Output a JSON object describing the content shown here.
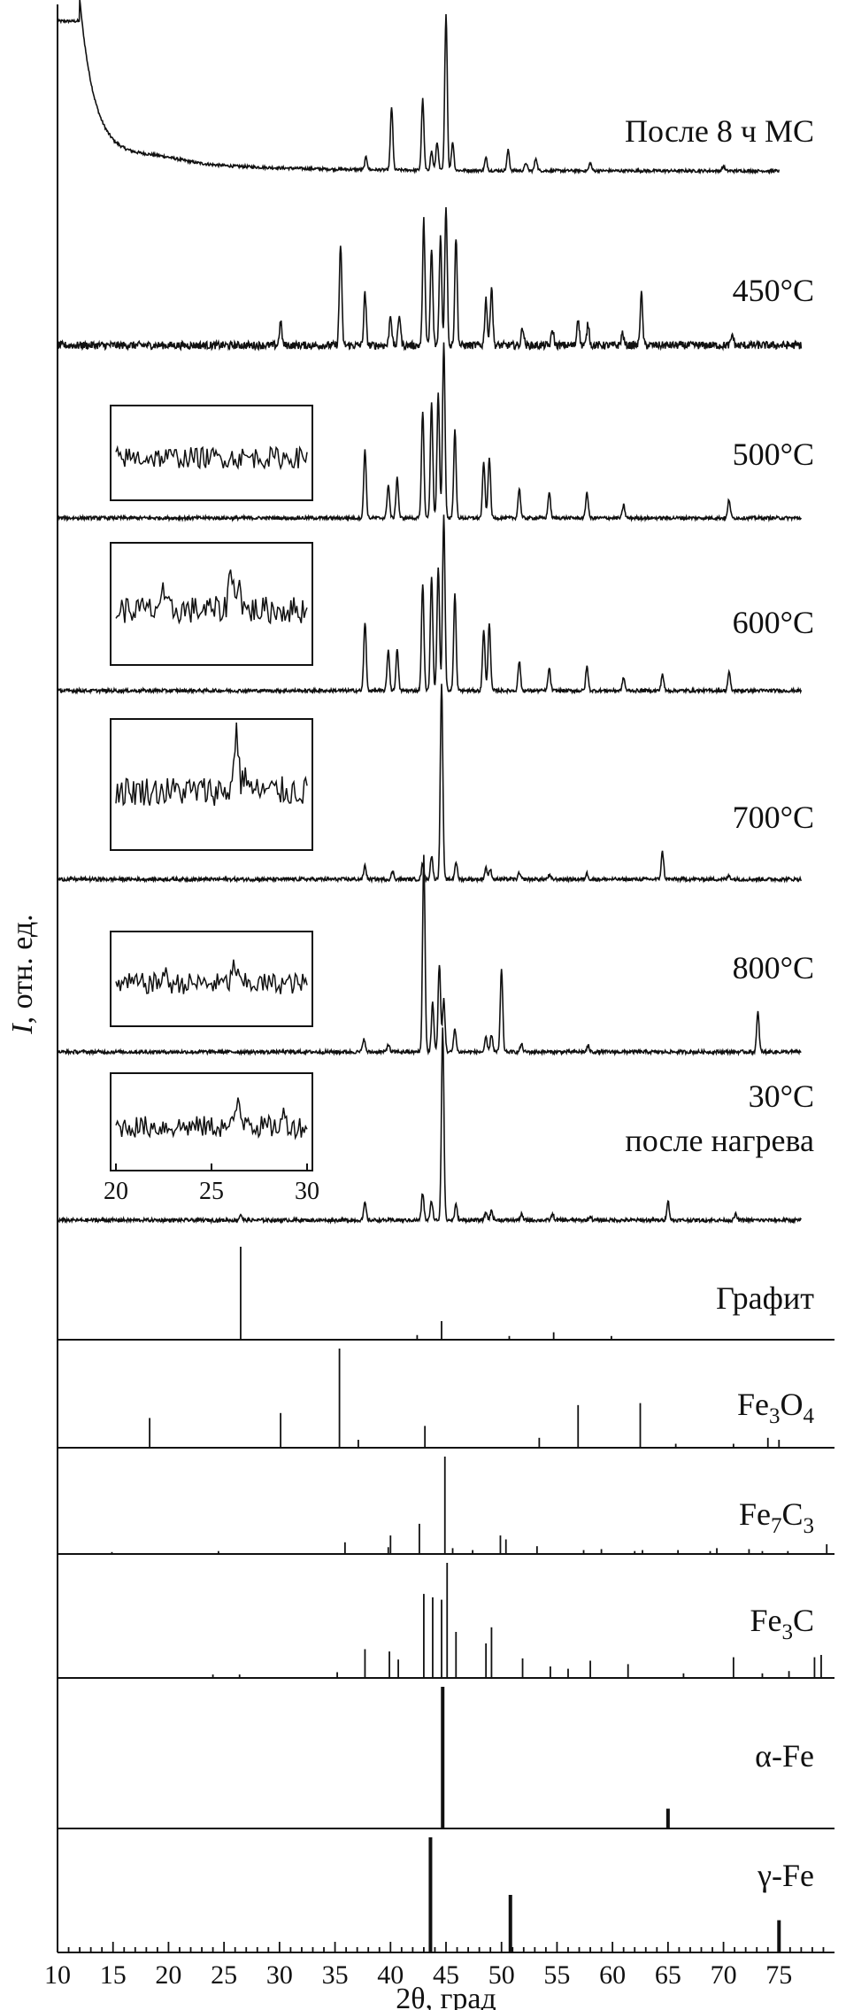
{
  "chart_data": {
    "type": "line",
    "xlabel": "2θ, град",
    "ylabel": "I, отн. ед.",
    "ylabel_parts": {
      "symbol": "I",
      "rest": ", отн. ед."
    },
    "xlim": [
      10,
      80
    ],
    "xticks": [
      10,
      15,
      20,
      25,
      30,
      35,
      40,
      45,
      50,
      55,
      60,
      65,
      70,
      75
    ],
    "xtick_labels": [
      "10",
      "15",
      "20",
      "25",
      "30",
      "35",
      "40",
      "45",
      "50",
      "55",
      "60",
      "65",
      "70",
      "75"
    ],
    "inset": {
      "xlim": [
        20,
        30
      ],
      "tick_labels": [
        "20",
        "25",
        "30"
      ],
      "series": [
        {
          "label": "500°C",
          "peaks": []
        },
        {
          "label": "600°C",
          "peaks": [
            [
              26.0,
              0.7
            ],
            [
              26.4,
              0.55
            ],
            [
              22.4,
              0.3
            ]
          ]
        },
        {
          "label": "700°C",
          "peaks": [
            [
              26.3,
              1.0
            ],
            [
              26.8,
              0.3
            ]
          ]
        },
        {
          "label": "800°C",
          "peaks": [
            [
              26.2,
              0.45
            ],
            [
              22.5,
              0.25
            ]
          ]
        },
        {
          "label": "30°C после нагрева",
          "peaks": [
            [
              26.4,
              0.6
            ],
            [
              26.9,
              0.3
            ],
            [
              28.8,
              0.25
            ]
          ]
        }
      ]
    },
    "series": [
      {
        "name": "После 8 ч МС",
        "label_parts": {
          "main": "После 8 ч МС",
          "sub": "",
          "main2": "",
          "sub2": ""
        },
        "background": "steep_low_angle",
        "peaks": [
          [
            37.8,
            0.08
          ],
          [
            40.1,
            0.4
          ],
          [
            42.9,
            0.45
          ],
          [
            43.7,
            0.12
          ],
          [
            44.2,
            0.18
          ],
          [
            45.0,
            1.0
          ],
          [
            45.6,
            0.18
          ],
          [
            48.6,
            0.08
          ],
          [
            50.6,
            0.13
          ],
          [
            52.2,
            0.05
          ],
          [
            53.1,
            0.08
          ],
          [
            58.0,
            0.05
          ],
          [
            70.0,
            0.03
          ]
        ],
        "x_range": [
          10,
          75
        ]
      },
      {
        "name": "450°C",
        "label_parts": {
          "main": "450°C",
          "sub": "",
          "main2": "",
          "sub2": ""
        },
        "peaks": [
          [
            30.1,
            0.15
          ],
          [
            35.5,
            0.65
          ],
          [
            37.7,
            0.33
          ],
          [
            40.0,
            0.2
          ],
          [
            40.8,
            0.2
          ],
          [
            43.0,
            0.8
          ],
          [
            43.7,
            0.62
          ],
          [
            44.5,
            0.7
          ],
          [
            45.0,
            0.9
          ],
          [
            45.9,
            0.7
          ],
          [
            48.6,
            0.3
          ],
          [
            49.1,
            0.38
          ],
          [
            51.9,
            0.12
          ],
          [
            54.6,
            0.1
          ],
          [
            56.9,
            0.18
          ],
          [
            57.8,
            0.14
          ],
          [
            60.9,
            0.08
          ],
          [
            62.6,
            0.33
          ],
          [
            70.8,
            0.07
          ]
        ],
        "x_range": [
          10,
          77
        ]
      },
      {
        "name": "500°C",
        "label_parts": {
          "main": "500°C",
          "sub": "",
          "main2": "",
          "sub2": ""
        },
        "peaks": [
          [
            37.7,
            0.37
          ],
          [
            39.8,
            0.18
          ],
          [
            40.6,
            0.22
          ],
          [
            42.9,
            0.58
          ],
          [
            43.7,
            0.62
          ],
          [
            44.3,
            0.67
          ],
          [
            44.8,
            0.95
          ],
          [
            45.8,
            0.47
          ],
          [
            48.4,
            0.3
          ],
          [
            48.9,
            0.33
          ],
          [
            51.6,
            0.16
          ],
          [
            54.3,
            0.14
          ],
          [
            57.7,
            0.14
          ],
          [
            61.0,
            0.07
          ],
          [
            70.5,
            0.1
          ]
        ],
        "x_range": [
          10,
          77
        ]
      },
      {
        "name": "600°C",
        "label_parts": {
          "main": "600°C",
          "sub": "",
          "main2": "",
          "sub2": ""
        },
        "peaks": [
          [
            37.7,
            0.37
          ],
          [
            39.8,
            0.22
          ],
          [
            40.6,
            0.22
          ],
          [
            42.9,
            0.58
          ],
          [
            43.7,
            0.62
          ],
          [
            44.3,
            0.67
          ],
          [
            44.8,
            0.95
          ],
          [
            45.8,
            0.52
          ],
          [
            48.4,
            0.33
          ],
          [
            48.9,
            0.37
          ],
          [
            51.6,
            0.16
          ],
          [
            54.3,
            0.12
          ],
          [
            57.7,
            0.13
          ],
          [
            61.0,
            0.07
          ],
          [
            64.5,
            0.09
          ],
          [
            70.5,
            0.1
          ]
        ],
        "x_range": [
          10,
          77
        ]
      },
      {
        "name": "700°C",
        "label_parts": {
          "main": "700°C",
          "sub": "",
          "main2": "",
          "sub2": ""
        },
        "peaks": [
          [
            37.7,
            0.07
          ],
          [
            40.2,
            0.04
          ],
          [
            42.9,
            0.08
          ],
          [
            43.7,
            0.12
          ],
          [
            44.6,
            1.0
          ],
          [
            45.9,
            0.09
          ],
          [
            48.6,
            0.06
          ],
          [
            49.0,
            0.05
          ],
          [
            51.6,
            0.03
          ],
          [
            54.3,
            0.02
          ],
          [
            57.7,
            0.03
          ],
          [
            64.5,
            0.14
          ],
          [
            70.5,
            0.02
          ]
        ],
        "x_range": [
          10,
          77
        ]
      },
      {
        "name": "800°C",
        "label_parts": {
          "main": "800°C",
          "sub": "",
          "main2": "",
          "sub2": ""
        },
        "peaks": [
          [
            37.6,
            0.07
          ],
          [
            39.8,
            0.04
          ],
          [
            43.0,
            1.0
          ],
          [
            43.8,
            0.25
          ],
          [
            44.4,
            0.45
          ],
          [
            44.8,
            0.27
          ],
          [
            45.8,
            0.12
          ],
          [
            48.6,
            0.07
          ],
          [
            49.1,
            0.09
          ],
          [
            50.0,
            0.42
          ],
          [
            51.8,
            0.04
          ],
          [
            57.8,
            0.03
          ],
          [
            73.1,
            0.2
          ]
        ],
        "x_range": [
          10,
          77
        ]
      },
      {
        "name": "30°C после нагрева",
        "label_parts": {
          "main": "30°C",
          "sub": "",
          "main2": "после нагрева",
          "sub2": ""
        },
        "peaks": [
          [
            26.5,
            0.03
          ],
          [
            37.7,
            0.09
          ],
          [
            42.9,
            0.14
          ],
          [
            43.7,
            0.1
          ],
          [
            44.7,
            1.0
          ],
          [
            45.9,
            0.08
          ],
          [
            48.6,
            0.04
          ],
          [
            49.1,
            0.05
          ],
          [
            51.8,
            0.03
          ],
          [
            54.6,
            0.03
          ],
          [
            58.0,
            0.02
          ],
          [
            65.0,
            0.1
          ],
          [
            71.1,
            0.03
          ]
        ],
        "x_range": [
          10,
          77
        ]
      }
    ],
    "reference_patterns": [
      {
        "name": "Графит",
        "label_parts": {
          "main": "Графит",
          "sub": "",
          "main2": "",
          "sub2": ""
        },
        "lines": [
          [
            26.5,
            1.0
          ],
          [
            42.4,
            0.05
          ],
          [
            44.6,
            0.2
          ],
          [
            50.7,
            0.04
          ],
          [
            54.7,
            0.08
          ],
          [
            59.9,
            0.04
          ]
        ]
      },
      {
        "name": "Fe3O4",
        "label_parts": {
          "main": "Fe",
          "sub": "3",
          "main2": "O",
          "sub2": "4"
        },
        "lines": [
          [
            18.3,
            0.3
          ],
          [
            30.1,
            0.35
          ],
          [
            35.4,
            1.0
          ],
          [
            37.1,
            0.08
          ],
          [
            43.1,
            0.22
          ],
          [
            53.4,
            0.1
          ],
          [
            56.9,
            0.43
          ],
          [
            62.5,
            0.45
          ],
          [
            65.7,
            0.04
          ],
          [
            70.9,
            0.04
          ],
          [
            74.0,
            0.1
          ],
          [
            75.0,
            0.08
          ]
        ]
      },
      {
        "name": "Fe7C3",
        "label_parts": {
          "main": "Fe",
          "sub": "7",
          "main2": "C",
          "sub2": "3"
        },
        "lines": [
          [
            14.9,
            0.02
          ],
          [
            24.5,
            0.03
          ],
          [
            35.9,
            0.12
          ],
          [
            39.8,
            0.07
          ],
          [
            40.0,
            0.19
          ],
          [
            42.6,
            0.31
          ],
          [
            44.9,
            1.0
          ],
          [
            45.6,
            0.06
          ],
          [
            47.4,
            0.04
          ],
          [
            49.9,
            0.19
          ],
          [
            50.4,
            0.15
          ],
          [
            53.2,
            0.08
          ],
          [
            57.4,
            0.04
          ],
          [
            59.0,
            0.05
          ],
          [
            62.0,
            0.03
          ],
          [
            62.7,
            0.04
          ],
          [
            65.9,
            0.04
          ],
          [
            68.8,
            0.03
          ],
          [
            69.4,
            0.06
          ],
          [
            72.3,
            0.05
          ],
          [
            73.5,
            0.03
          ],
          [
            75.8,
            0.03
          ],
          [
            79.3,
            0.1
          ]
        ]
      },
      {
        "name": "Fe3C",
        "label_parts": {
          "main": "Fe",
          "sub": "3",
          "main2": "C",
          "sub2": ""
        },
        "lines": [
          [
            24.0,
            0.03
          ],
          [
            26.4,
            0.03
          ],
          [
            35.2,
            0.05
          ],
          [
            37.7,
            0.25
          ],
          [
            39.9,
            0.23
          ],
          [
            40.7,
            0.16
          ],
          [
            43.0,
            0.73
          ],
          [
            43.8,
            0.7
          ],
          [
            44.6,
            0.68
          ],
          [
            45.1,
            1.0
          ],
          [
            45.9,
            0.4
          ],
          [
            48.6,
            0.3
          ],
          [
            49.1,
            0.44
          ],
          [
            51.9,
            0.17
          ],
          [
            54.4,
            0.1
          ],
          [
            56.0,
            0.08
          ],
          [
            58.0,
            0.15
          ],
          [
            61.4,
            0.12
          ],
          [
            66.4,
            0.04
          ],
          [
            70.9,
            0.18
          ],
          [
            73.5,
            0.04
          ],
          [
            75.9,
            0.06
          ],
          [
            78.2,
            0.18
          ],
          [
            78.8,
            0.2
          ]
        ]
      },
      {
        "name": "α-Fe",
        "label_parts": {
          "main": "α-Fe",
          "sub": "",
          "main2": "",
          "sub2": ""
        },
        "lines": [
          [
            44.7,
            1.0
          ],
          [
            65.0,
            0.14
          ]
        ],
        "thick": true
      },
      {
        "name": "γ-Fe",
        "label_parts": {
          "main": "γ-Fe",
          "sub": "",
          "main2": "",
          "sub2": ""
        },
        "lines": [
          [
            43.6,
            1.0
          ],
          [
            50.8,
            0.5
          ],
          [
            75.0,
            0.28
          ]
        ],
        "thick": true
      }
    ]
  }
}
